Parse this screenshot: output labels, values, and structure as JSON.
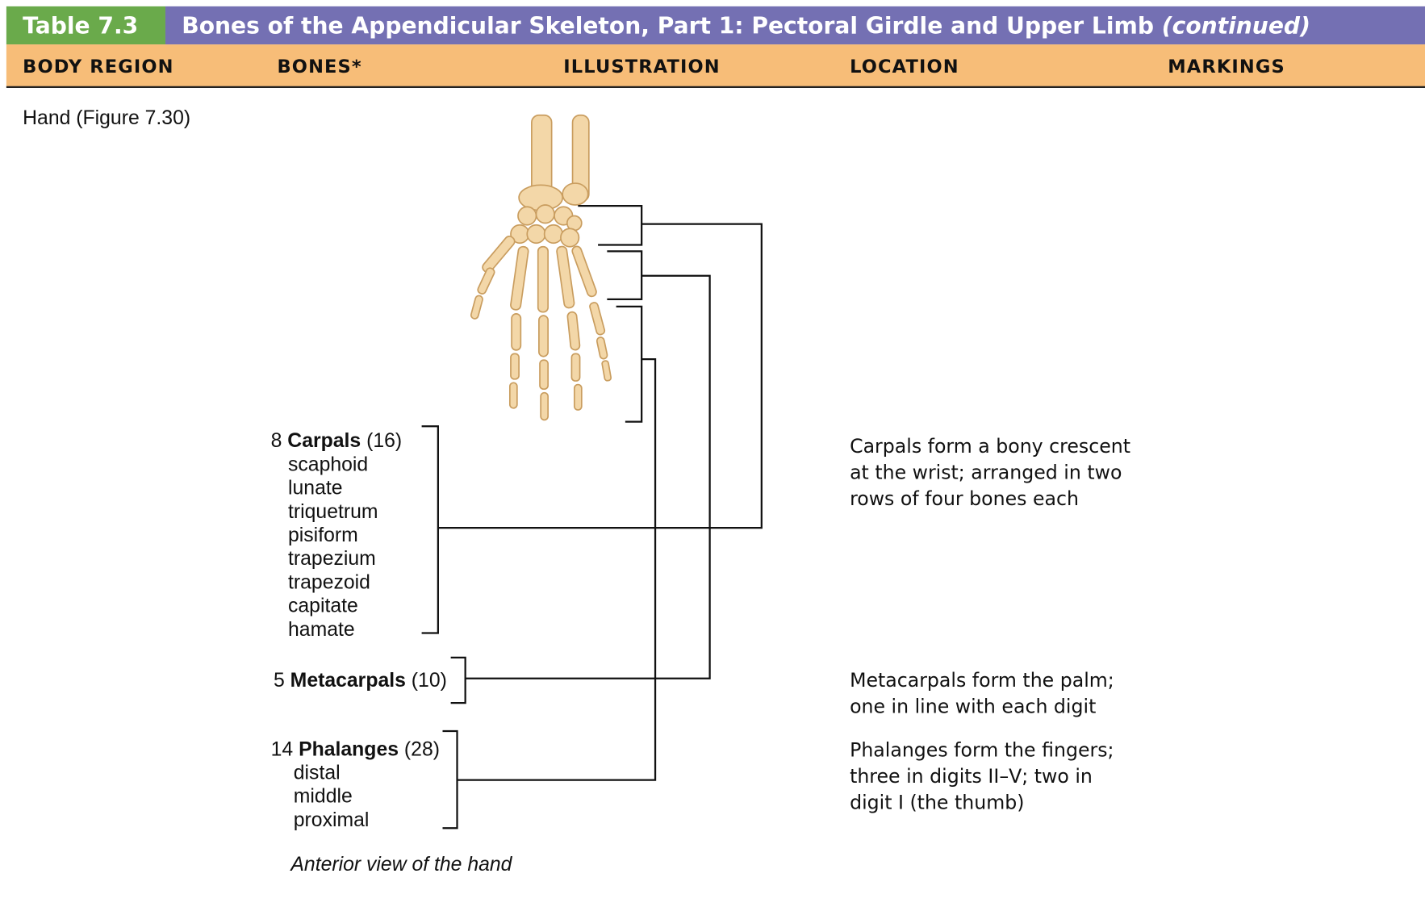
{
  "header": {
    "table_label": "Table 7.3",
    "title": "Bones of the Appendicular Skeleton, Part 1: Pectoral Girdle and Upper Limb",
    "title_note": "(continued)"
  },
  "columns": [
    "BODY REGION",
    "BONES*",
    "ILLUSTRATION",
    "LOCATION",
    "MARKINGS"
  ],
  "region": "Hand (Figure 7.30)",
  "bones": [
    {
      "count": "8",
      "name": "Carpals",
      "total": "(16)",
      "parts": [
        "scaphoid",
        "lunate",
        "triquetrum",
        "pisiform",
        "trapezium",
        "trapezoid",
        "capitate",
        "hamate"
      ],
      "location": [
        "Carpals form a bony crescent",
        "at the wrist; arranged in two",
        "rows of four bones each"
      ]
    },
    {
      "count": "5",
      "name": "Metacarpals",
      "total": "(10)",
      "parts": [],
      "location": [
        "Metacarpals form the palm;",
        "one in line with each digit"
      ]
    },
    {
      "count": "14",
      "name": "Phalanges",
      "total": "(28)",
      "parts": [
        "distal",
        "middle",
        "proximal"
      ],
      "location": [
        "Phalanges form the fingers;",
        "three in digits II–V; two in",
        "digit I (the thumb)"
      ]
    }
  ],
  "caption": "Anterior view of the hand"
}
